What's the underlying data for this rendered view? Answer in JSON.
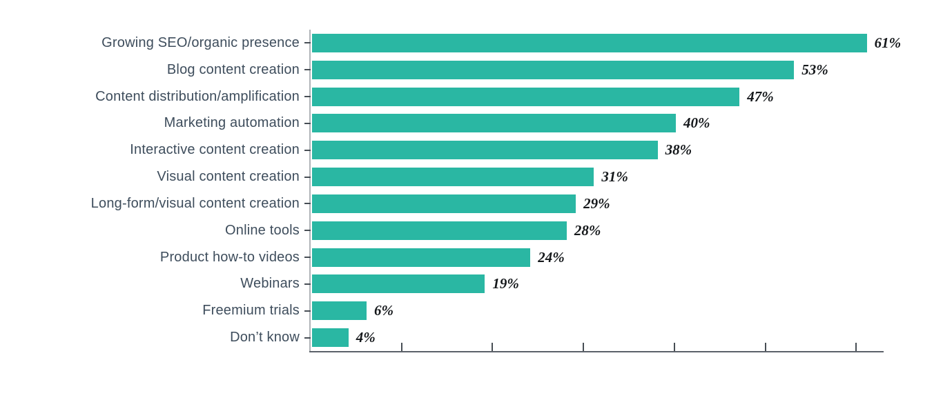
{
  "chart_data": {
    "type": "bar",
    "orientation": "horizontal",
    "title": "",
    "xlabel": "",
    "ylabel": "",
    "categories": [
      "Growing SEO/organic presence",
      "Blog content creation",
      "Content distribution/amplification",
      "Marketing automation",
      "Interactive content creation",
      "Visual content creation",
      "Long-form/visual content creation",
      "Online tools",
      "Product how-to videos",
      "Webinars",
      "Freemium trials",
      "Don’t know"
    ],
    "values": [
      61,
      53,
      47,
      40,
      38,
      31,
      29,
      28,
      24,
      19,
      6,
      4
    ],
    "value_labels": [
      "61%",
      "53%",
      "47%",
      "40%",
      "38%",
      "31%",
      "29%",
      "28%",
      "24%",
      "19%",
      "6%",
      "4%"
    ],
    "xlim": [
      0,
      63
    ],
    "xticks": [
      10,
      20,
      30,
      40,
      50,
      60
    ],
    "xtick_labels_visible": false,
    "grid": false,
    "legend": false,
    "colors": {
      "bar": "#2ab7a3",
      "category_label": "#3e4d5c",
      "value_label": "#15181b",
      "y_axis_line": "#afb3b7",
      "x_axis_line": "#5b6169",
      "tick": "#474d54",
      "background": "#ffffff"
    }
  }
}
